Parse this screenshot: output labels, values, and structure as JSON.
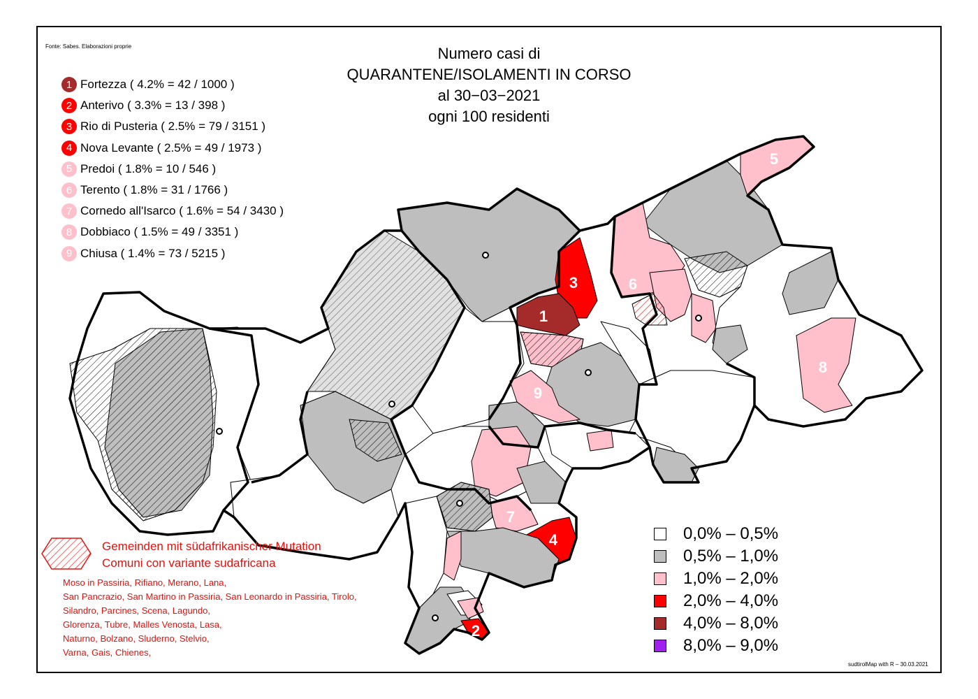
{
  "source": "Fonte: Sabes. Elaborazioni proprie",
  "credit": "sudtirolMap with R – 30.03.2021",
  "title": [
    "Numero casi di",
    "QUARANTENE/ISOLAMENTI IN CORSO",
    "al 30−03−2021",
    "ogni 100 residenti"
  ],
  "colors": {
    "c0": "#ffffff",
    "c1": "#bebebe",
    "c2": "#ffc0cb",
    "c3": "#ff0000",
    "c4": "#a52a2a",
    "c5": "#a020f0",
    "mutation_text": "#e0120f",
    "border": "#000000"
  },
  "ranking": [
    {
      "num": "1",
      "text": "Fortezza ( 4.2% = 42 / 1000 )",
      "cls": "c4"
    },
    {
      "num": "2",
      "text": "Anterivo ( 3.3% = 13 / 398 )",
      "cls": "c3"
    },
    {
      "num": "3",
      "text": "Rio di Pusteria ( 2.5% = 79 / 3151 )",
      "cls": "c3"
    },
    {
      "num": "4",
      "text": "Nova Levante ( 2.5% = 49 / 1973 )",
      "cls": "c3"
    },
    {
      "num": "5",
      "text": "Predoi ( 1.8% = 10 / 546 )",
      "cls": "c2"
    },
    {
      "num": "6",
      "text": "Terento ( 1.8% = 31 / 1766 )",
      "cls": "c2"
    },
    {
      "num": "7",
      "text": "Cornedo all'Isarco ( 1.6% = 54 / 3430 )",
      "cls": "c2"
    },
    {
      "num": "8",
      "text": "Dobbiaco ( 1.5% = 49 / 3351 )",
      "cls": "c2"
    },
    {
      "num": "9",
      "text": "Chiusa ( 1.4% = 73 / 5215 )",
      "cls": "c2"
    }
  ],
  "legend": [
    {
      "label": "0,0% – 0,5%",
      "cls": "c0"
    },
    {
      "label": "0,5% – 1,0%",
      "cls": "c1"
    },
    {
      "label": "1,0% – 2,0%",
      "cls": "c2"
    },
    {
      "label": "2,0% – 4,0%",
      "cls": "c3"
    },
    {
      "label": "4,0% – 8,0%",
      "cls": "c4"
    },
    {
      "label": "8,0% – 9,0%",
      "cls": "c5"
    }
  ],
  "mutation": {
    "title_de": "Gemeinden mit südafrikanischer Mutation",
    "title_it": "Comuni con variante sudafricana",
    "lines": [
      "Moso in Passiria,  Rifiano,  Merano,  Lana,",
      "San Pancrazio,  San Martino in Passiria,  San Leonardo in Passiria,  Tirolo,",
      "Silandro,  Parcines,  Scena,  Lagundo,",
      "Glorenza,  Tubre,  Malles Venosta,  Lasa,",
      "Naturno,  Bolzano,  Sluderno,  Stelvio,",
      "Varna,  Gais,  Chienes,"
    ]
  },
  "map_labels": [
    "1",
    "2",
    "3",
    "4",
    "5",
    "6",
    "7",
    "8",
    "9"
  ]
}
